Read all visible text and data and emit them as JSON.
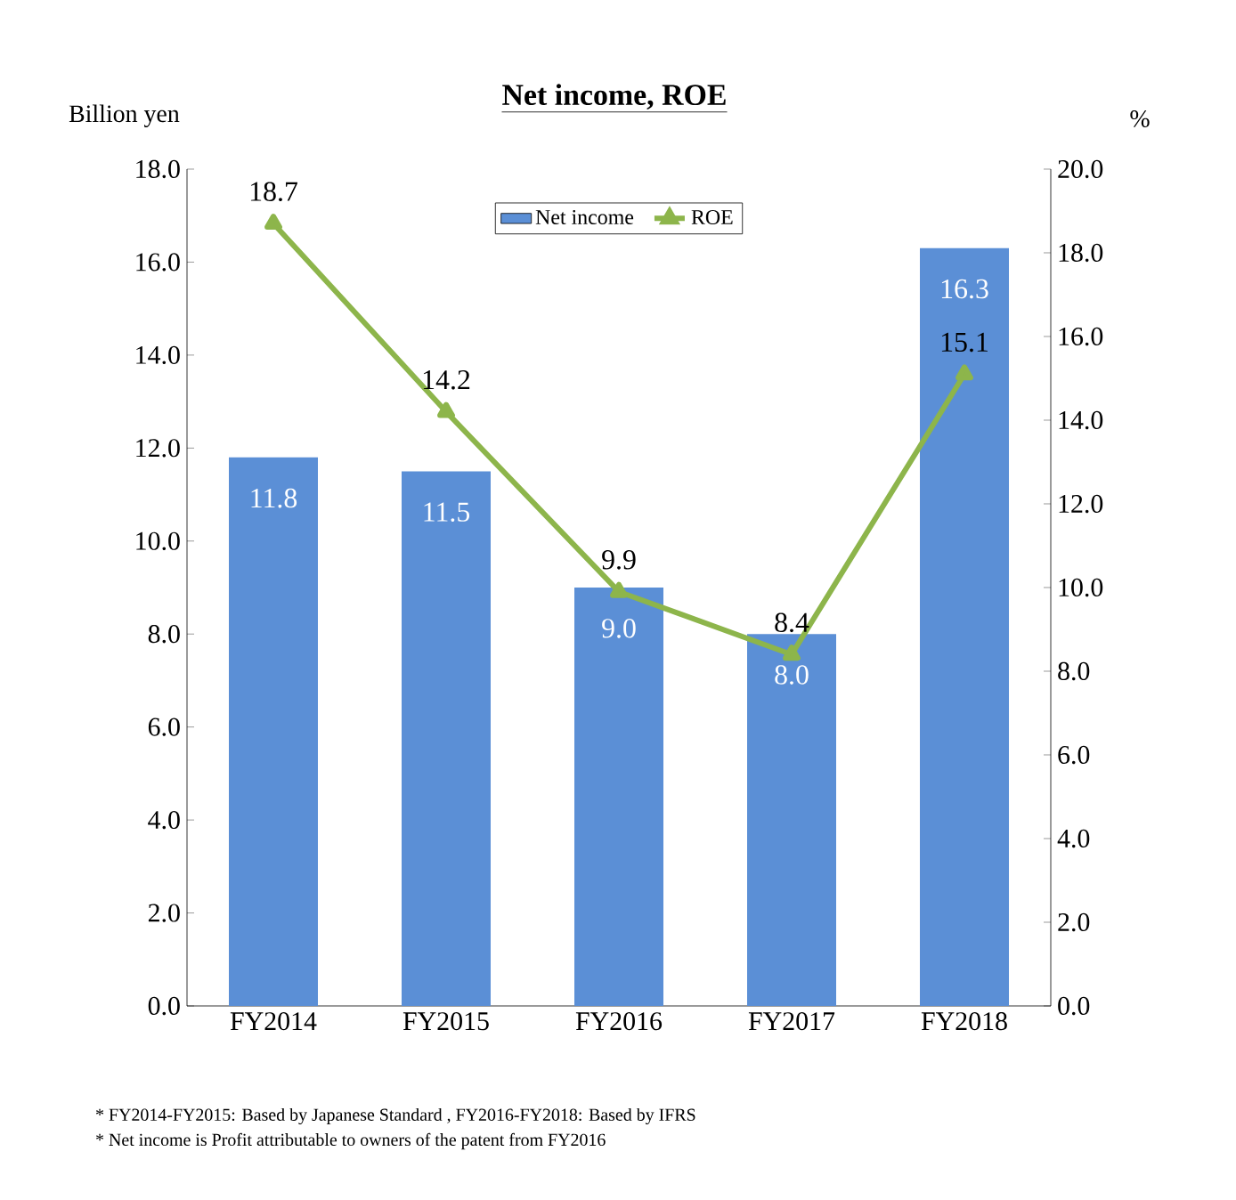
{
  "chart_data": {
    "type": "bar",
    "title": "Net income, ROE",
    "ylabel": "Billion yen",
    "y2label": "%",
    "categories": [
      "FY2014",
      "FY2015",
      "FY2016",
      "FY2017",
      "FY2018"
    ],
    "series": [
      {
        "name": "Net income",
        "color": "#5b8fd6",
        "values": [
          11.8,
          11.5,
          9.0,
          8.0,
          16.3
        ],
        "value_labels": [
          "11.8",
          "11.5",
          "9.0",
          "8.0",
          "16.3"
        ]
      },
      {
        "name": "ROE",
        "type": "line",
        "axis": "y2",
        "color": "#8db54b",
        "marker": "triangle",
        "values": [
          18.7,
          14.2,
          9.9,
          8.4,
          15.1
        ],
        "value_labels": [
          "18.7",
          "14.2",
          "9.9",
          "8.4",
          "15.1"
        ]
      }
    ],
    "ylim": [
      0,
      18
    ],
    "yticks": [
      {
        "value": 0,
        "label": "0.0"
      },
      {
        "value": 2,
        "label": "2.0"
      },
      {
        "value": 4,
        "label": "4.0"
      },
      {
        "value": 6,
        "label": "6.0"
      },
      {
        "value": 8,
        "label": "8.0"
      },
      {
        "value": 10,
        "label": "10.0"
      },
      {
        "value": 12,
        "label": "12.0"
      },
      {
        "value": 14,
        "label": "14.0"
      },
      {
        "value": 16,
        "label": "16.0"
      },
      {
        "value": 18,
        "label": "18.0"
      }
    ],
    "y2lim": [
      0,
      20
    ],
    "y2ticks": [
      {
        "value": 0,
        "label": "0.0"
      },
      {
        "value": 2,
        "label": "2.0"
      },
      {
        "value": 4,
        "label": "4.0"
      },
      {
        "value": 6,
        "label": "6.0"
      },
      {
        "value": 8,
        "label": "8.0"
      },
      {
        "value": 10,
        "label": "10.0"
      },
      {
        "value": 12,
        "label": "12.0"
      },
      {
        "value": 14,
        "label": "14.0"
      },
      {
        "value": 16,
        "label": "16.0"
      },
      {
        "value": 18,
        "label": "18.0"
      },
      {
        "value": 20,
        "label": "20.0"
      }
    ],
    "legend": "top",
    "grid": false,
    "annotations": [
      "* FY2014-FY2015: Based by Japanese Standard ,  FY2016-FY2018: Based by  IFRS",
      "* Net income is Profit attributable to owners of the patent from FY2016"
    ]
  }
}
